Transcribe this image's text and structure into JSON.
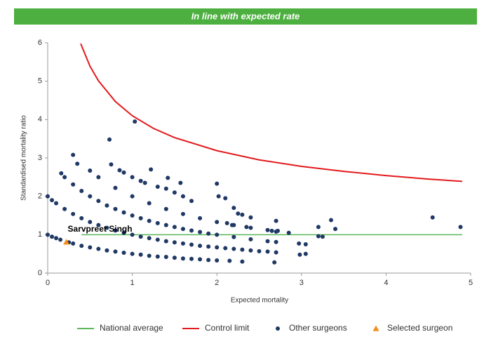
{
  "chart_data": {
    "type": "scatter",
    "title": "In line with expected rate",
    "x_label": "Expected mortality",
    "y_label": "Standardised mortality ratio",
    "annotation": "Sarvpreet Singh",
    "xlim": [
      0,
      5
    ],
    "xticks": [
      0,
      1,
      2,
      3,
      4,
      5
    ],
    "ylim": [
      0,
      6
    ],
    "yticks": [
      0,
      1,
      2,
      3,
      4,
      5,
      6
    ],
    "series": [
      {
        "name": "National average",
        "color": "#5cb85c",
        "mode": "line",
        "x": [
          0.4,
          4.9
        ],
        "values": [
          1,
          1
        ]
      },
      {
        "name": "Control limit",
        "color": "#e31a1c",
        "mode": "line",
        "x": [
          0.39,
          0.5,
          0.6,
          0.8,
          1,
          1.25,
          1.5,
          2,
          2.5,
          3,
          3.5,
          4,
          4.5,
          4.9
        ],
        "values": [
          5.98,
          5.39,
          5.01,
          4.47,
          4.1,
          3.77,
          3.53,
          3.19,
          2.95,
          2.78,
          2.65,
          2.54,
          2.45,
          2.39
        ]
      },
      {
        "name": "Other surgeons",
        "color": "#1f3864",
        "mode": "points",
        "marker": "circle",
        "x": [
          0,
          0.05,
          0.1,
          0.15,
          0.25,
          0.3,
          0.4,
          0.5,
          0.6,
          0.7,
          0.8,
          0.9,
          1,
          1.1,
          1.2,
          1.3,
          1.4,
          1.5,
          1.6,
          1.7,
          1.8,
          1.9,
          2,
          2.15,
          2.3,
          0,
          0.05,
          0.1,
          0.2,
          0.3,
          0.4,
          0.5,
          0.6,
          0.7,
          0.8,
          0.9,
          1,
          1.1,
          1.2,
          1.3,
          1.4,
          1.5,
          1.6,
          1.7,
          1.8,
          1.9,
          2,
          2.1,
          2.2,
          2.3,
          2.4,
          2.5,
          2.6,
          2.7,
          0.2,
          0.3,
          0.4,
          0.5,
          0.6,
          0.7,
          0.8,
          0.9,
          1,
          1.1,
          1.2,
          1.3,
          1.4,
          1.5,
          1.6,
          1.7,
          1.8,
          1.9,
          2,
          2.2,
          2.4,
          2.6,
          2.7,
          0.3,
          0.5,
          0.6,
          0.8,
          1,
          1.2,
          1.4,
          1.6,
          1.8,
          2,
          2.2,
          2.4,
          2.7,
          0.16,
          0.35,
          0.73,
          0.75,
          0.85,
          0.9,
          1,
          1.03,
          1.1,
          1.15,
          1.22,
          1.3,
          1.4,
          1.42,
          1.5,
          1.57,
          1.6,
          1.7,
          2,
          2.02,
          2.1,
          2.2,
          2.25,
          2.3,
          2.4,
          2.12,
          2.18,
          2.35,
          2.6,
          2.65,
          2.7,
          2.72,
          2.85,
          2.97,
          3.05,
          2.98,
          3.05,
          3.2,
          3.2,
          3.25,
          3.35,
          3.4,
          4.55,
          4.88,
          2.68
        ],
        "values": [
          1,
          0.95,
          0.91,
          0.87,
          0.8,
          0.77,
          0.71,
          0.67,
          0.63,
          0.59,
          0.56,
          0.53,
          0.5,
          0.48,
          0.45,
          0.43,
          0.42,
          0.4,
          0.38,
          0.37,
          0.36,
          0.34,
          0.33,
          0.32,
          0.3,
          2,
          1.9,
          1.82,
          1.67,
          1.54,
          1.43,
          1.33,
          1.25,
          1.18,
          1.11,
          1.05,
          1,
          0.95,
          0.91,
          0.87,
          0.83,
          0.8,
          0.77,
          0.74,
          0.71,
          0.69,
          0.67,
          0.65,
          0.63,
          0.61,
          0.59,
          0.57,
          0.56,
          0.54,
          2.5,
          2.31,
          2.14,
          2,
          1.88,
          1.76,
          1.67,
          1.58,
          1.5,
          1.43,
          1.36,
          1.3,
          1.25,
          1.2,
          1.15,
          1.11,
          1.07,
          1.03,
          1,
          0.94,
          0.88,
          0.83,
          0.81,
          3.08,
          2.67,
          2.5,
          2.22,
          2,
          1.82,
          1.67,
          1.54,
          1.43,
          1.33,
          1.25,
          1.18,
          1.08,
          2.6,
          2.85,
          3.48,
          2.83,
          2.68,
          2.62,
          2.5,
          3.95,
          2.4,
          2.35,
          2.7,
          2.25,
          2.2,
          2.48,
          2.1,
          2.35,
          2,
          1.88,
          2.33,
          2,
          1.95,
          1.7,
          1.55,
          1.52,
          1.45,
          1.3,
          1.25,
          1.2,
          1.12,
          1.1,
          1.36,
          1.1,
          1.05,
          0.77,
          0.75,
          0.48,
          0.5,
          1.2,
          0.96,
          0.95,
          1.38,
          1.15,
          1.45,
          1.2,
          0.28
        ]
      },
      {
        "name": "Selected surgeon",
        "color": "#f28e1c",
        "mode": "points",
        "marker": "triangle",
        "x": [
          0.22
        ],
        "values": [
          0.81
        ]
      }
    ]
  }
}
